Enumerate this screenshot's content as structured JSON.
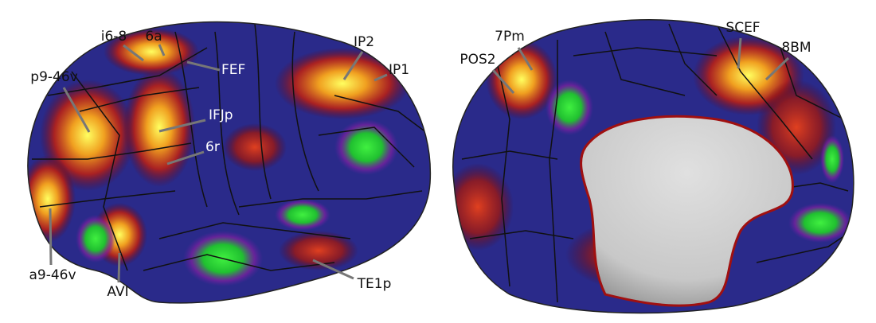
{
  "labels": [
    "6a",
    "i6-8",
    "FEF",
    "p9-46v",
    "IFJp",
    "6r",
    "IP2",
    "IP1",
    "a9-46v",
    "AVI",
    "TE1p",
    "7Pm",
    "POS2",
    "SCEF",
    "8BM"
  ]
}
